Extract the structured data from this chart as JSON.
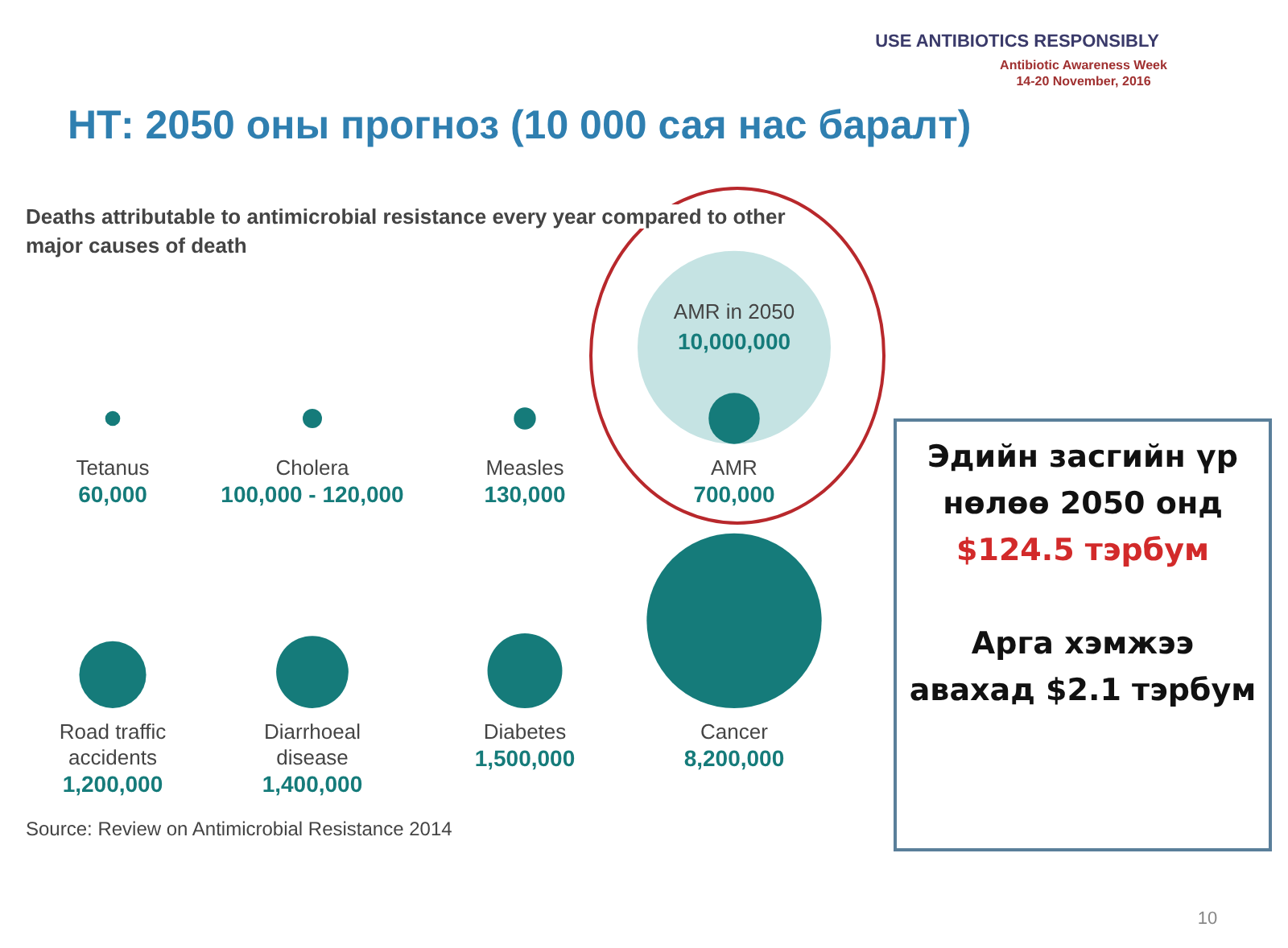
{
  "chart_data": {
    "type": "other",
    "title": "НТ: 2050  оны прогноз (10 000 сая нас баралт)",
    "subtitle": "Deaths attributable to antimicrobial resistance every year compared to other major causes of death",
    "categories": [
      "Tetanus",
      "Cholera",
      "Measles",
      "AMR",
      "Road traffic accidents",
      "Diarrhoeal disease",
      "Diabetes",
      "Cancer"
    ],
    "series": [
      {
        "color": "#c5e3e3",
        "name": "AMR in 2050",
        "values": [
          null,
          null,
          null,
          10000000,
          null,
          null,
          null,
          null
        ],
        "value_labels": [
          null,
          null,
          null,
          "10,000,000",
          null,
          null,
          null,
          null
        ]
      },
      {
        "color": "#157b7a",
        "values": [
          60000,
          100000,
          130000,
          700000,
          1200000,
          1400000,
          1500000,
          8200000
        ],
        "value_labels": [
          "60,000",
          "100,000 - 120,000",
          "130,000",
          "700,000",
          "1,200,000",
          "1,400,000",
          "1,500,000",
          "8,200,000"
        ]
      }
    ],
    "annotations": [
      "Source: Review on Antimicrobial Resistance 2014",
      "Эдийн засгийн үр нөлөө  2050 онд",
      "$124.5 тэрбум",
      "Арга хэмжээ авахад $2.1 тэрбум",
      "USE ANTIBIOTICS RESPONSIBLY",
      "Antibiotic Awareness Week",
      "14-20 November, 2016",
      "10"
    ]
  }
}
